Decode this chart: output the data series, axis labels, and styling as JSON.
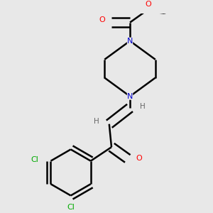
{
  "background_color": "#e8e8e8",
  "atom_colors": {
    "C": "#000000",
    "N": "#0000cc",
    "O": "#ff0000",
    "Cl": "#00aa00",
    "H": "#666666"
  },
  "bond_color": "#000000",
  "bond_width": 1.8,
  "dbo": 0.018
}
